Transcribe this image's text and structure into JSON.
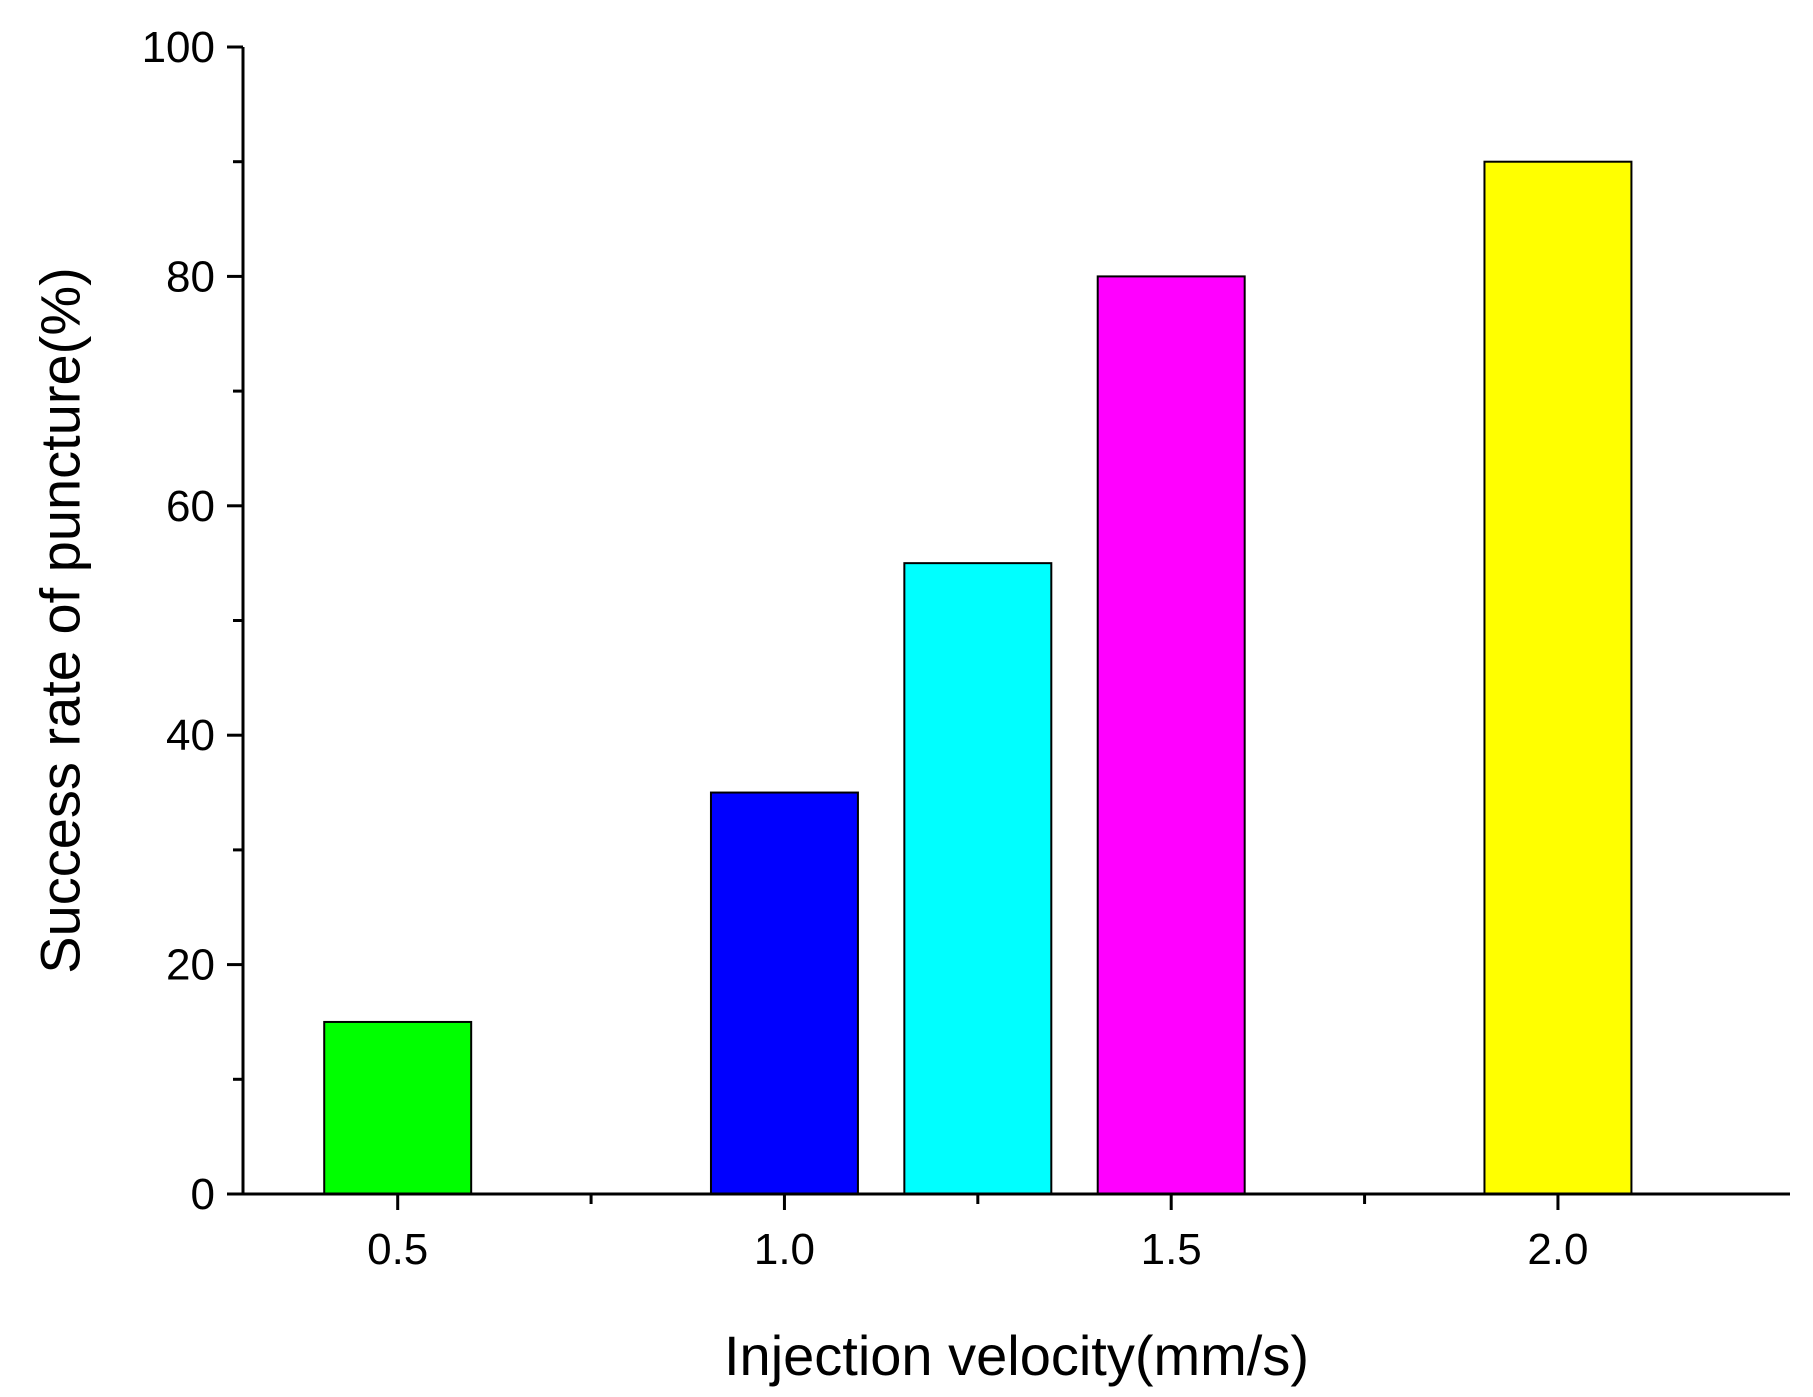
{
  "chart_data": {
    "type": "bar",
    "title": "",
    "xlabel": "Injection velocity(mm/s)",
    "ylabel": "Success rate of puncture(%)",
    "xlim": [
      0.3,
      2.3
    ],
    "ylim": [
      0,
      100
    ],
    "x_ticks": [
      0.5,
      0.75,
      1.0,
      1.25,
      1.5,
      1.75,
      2.0
    ],
    "x_tick_labels": [
      "0.5",
      "",
      "1.0",
      "",
      "1.5",
      "",
      "2.0"
    ],
    "y_ticks": [
      0,
      10,
      20,
      30,
      40,
      50,
      60,
      70,
      80,
      90,
      100
    ],
    "y_tick_labels": [
      "0",
      "",
      "20",
      "",
      "40",
      "",
      "60",
      "",
      "80",
      "",
      "100"
    ],
    "bar_width": 0.19,
    "bars": [
      {
        "x": 0.5,
        "value": 15,
        "color": "#00ff00"
      },
      {
        "x": 1.0,
        "value": 35,
        "color": "#0000ff"
      },
      {
        "x": 1.25,
        "value": 55,
        "color": "#00ffff"
      },
      {
        "x": 1.5,
        "value": 80,
        "color": "#ff00ff"
      },
      {
        "x": 2.0,
        "value": 90,
        "color": "#ffff00"
      }
    ]
  }
}
